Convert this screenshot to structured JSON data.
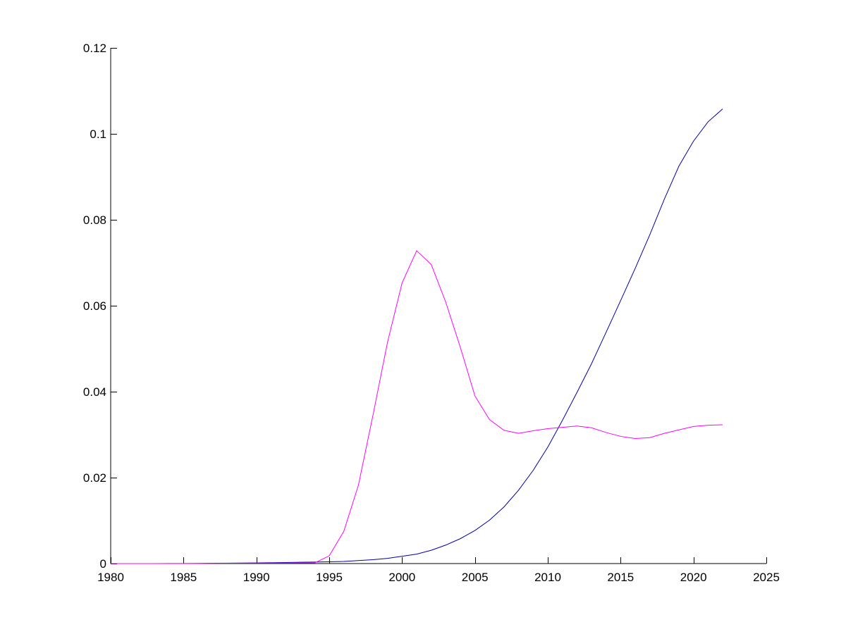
{
  "chart_data": {
    "type": "line",
    "title": "",
    "xlabel": "",
    "ylabel": "",
    "xlim": [
      1980,
      2025
    ],
    "ylim": [
      0,
      0.12
    ],
    "grid": false,
    "legend": "none",
    "x_ticks": [
      1980,
      1985,
      1990,
      1995,
      2000,
      2005,
      2010,
      2015,
      2020,
      2025
    ],
    "x_tick_labels": [
      "1980",
      "1985",
      "1990",
      "1995",
      "2000",
      "2005",
      "2010",
      "2015",
      "2020",
      "2025"
    ],
    "y_ticks": [
      0,
      0.02,
      0.04,
      0.06,
      0.08,
      0.1,
      0.12
    ],
    "y_tick_labels": [
      "0",
      "0.02",
      "0.04",
      "0.06",
      "0.08",
      "0.1",
      "0.12"
    ],
    "x": [
      1980,
      1981,
      1982,
      1983,
      1984,
      1985,
      1986,
      1987,
      1988,
      1989,
      1990,
      1991,
      1992,
      1993,
      1994,
      1995,
      1996,
      1997,
      1998,
      1999,
      2000,
      2001,
      2002,
      2003,
      2004,
      2005,
      2006,
      2007,
      2008,
      2009,
      2010,
      2011,
      2012,
      2013,
      2014,
      2015,
      2016,
      2017,
      2018,
      2019,
      2020,
      2021,
      2022
    ],
    "series": [
      {
        "color": "#0000aa",
        "values": [
          0,
          0,
          0,
          1e-05,
          2e-05,
          3e-05,
          5e-05,
          8e-05,
          0.0001,
          0.00013,
          0.00017,
          0.0002,
          0.00025,
          0.0003,
          0.00035,
          0.0004,
          0.0005,
          0.0007,
          0.0009,
          0.0012,
          0.0017,
          0.0022,
          0.0031,
          0.0043,
          0.0058,
          0.0077,
          0.0101,
          0.0132,
          0.0171,
          0.0217,
          0.0271,
          0.0333,
          0.0398,
          0.0465,
          0.0538,
          0.0612,
          0.0687,
          0.0765,
          0.0848,
          0.0925,
          0.0983,
          0.1028,
          0.1058
        ]
      },
      {
        "color": "#ff00ff",
        "values": [
          0,
          0,
          0,
          0,
          0,
          0,
          0,
          5e-05,
          8e-05,
          0.0001,
          0.00012,
          0.00012,
          0.00012,
          0.00015,
          0.00015,
          0.0018,
          0.0075,
          0.0182,
          0.0345,
          0.0515,
          0.0653,
          0.0728,
          0.0696,
          0.0608,
          0.0503,
          0.039,
          0.0335,
          0.031,
          0.0303,
          0.0309,
          0.0314,
          0.0317,
          0.032,
          0.0316,
          0.0305,
          0.0296,
          0.0291,
          0.0293,
          0.0303,
          0.0311,
          0.0319,
          0.0322,
          0.0323
        ]
      }
    ]
  }
}
